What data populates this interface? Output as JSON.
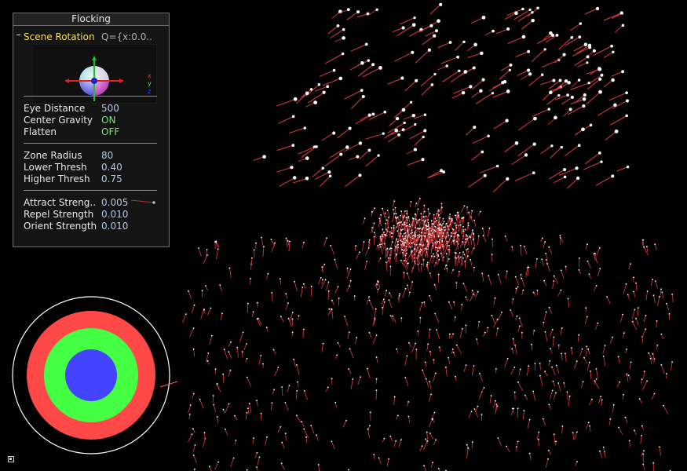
{
  "panel": {
    "title": "Flocking",
    "scene_rotation": {
      "label": "Scene Rotation",
      "value": "Q={x:0.0.."
    },
    "gizmo_axes": {
      "x": "x",
      "y": "y",
      "z": "z"
    },
    "params": [
      {
        "label": "Eye Distance",
        "value": "500"
      },
      {
        "label": "Center Gravity",
        "value": "ON"
      },
      {
        "label": "Flatten",
        "value": "OFF"
      },
      {
        "label": "Zone Radius",
        "value": "80"
      },
      {
        "label": "Lower Thresh",
        "value": "0.40"
      },
      {
        "label": "Higher Thresh",
        "value": "0.75"
      },
      {
        "label": "Attract Streng..",
        "value": "0.005"
      },
      {
        "label": "Repel Strength",
        "value": "0.010"
      },
      {
        "label": "Orient Strength",
        "value": "0.010"
      }
    ]
  },
  "colors": {
    "background": "#000000",
    "particle_head": "#ffffff",
    "particle_trail": "#e23b3b",
    "ring_outer": "#ff4848",
    "ring_middle": "#44ff44",
    "ring_inner": "#4444ff",
    "ring_border": "#ffffff",
    "highlight_label": "#f0e050",
    "value_text": "#b4c8e6",
    "toggle_on": "#7ee07e"
  },
  "icons": {
    "corner": "info-icon"
  }
}
